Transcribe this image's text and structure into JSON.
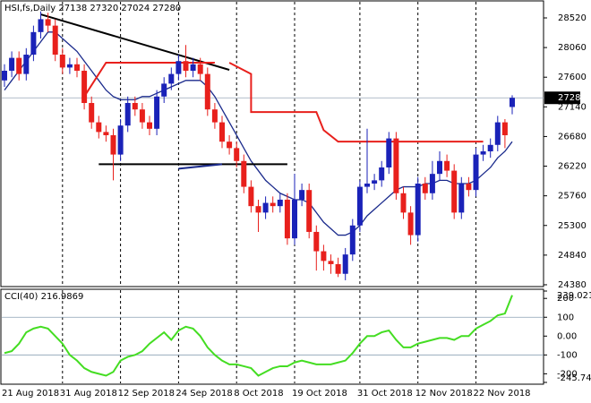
{
  "chart_data": {
    "type": "candlestick",
    "title": "HSI,fs,Daily  27138 27320 27024 27280",
    "categories": [
      "21 Aug 2018",
      null,
      null,
      null,
      null,
      null,
      null,
      null,
      "31 Aug 2018",
      null,
      null,
      null,
      null,
      null,
      null,
      null,
      "12 Sep 2018",
      null,
      null,
      null,
      null,
      null,
      null,
      null,
      "24 Sep 2018",
      null,
      null,
      null,
      null,
      null,
      null,
      null,
      "8 Oct 2018",
      null,
      null,
      null,
      null,
      null,
      null,
      null,
      "19 Oct 2018",
      null,
      null,
      null,
      null,
      null,
      null,
      null,
      null,
      "31 Oct 2018",
      null,
      null,
      null,
      null,
      null,
      null,
      null,
      "12 Nov 2018",
      null,
      null,
      null,
      null,
      null,
      null,
      null,
      "22 Nov 2018",
      null,
      null,
      null,
      null,
      null
    ],
    "open": [
      27550,
      27700,
      27900,
      27650,
      27950,
      28300,
      28500,
      28400,
      27950,
      27750,
      27800,
      27700,
      27200,
      26900,
      26750,
      26700,
      26400,
      26850,
      27200,
      27100,
      26900,
      26800,
      27300,
      27500,
      27650,
      27850,
      27700,
      27800,
      27650,
      27100,
      26900,
      26600,
      26500,
      26300,
      25900,
      25600,
      25500,
      25650,
      25600,
      25700,
      25100,
      25700,
      25850,
      25200,
      24900,
      24750,
      24700,
      24550,
      24850,
      25300,
      25900,
      25950,
      26000,
      26200,
      26650,
      25800,
      25500,
      25150,
      25950,
      25800,
      26100,
      26300,
      26150,
      25500,
      25950,
      25850,
      26400,
      26450,
      26550,
      26900,
      27138
    ],
    "high": [
      27800,
      28000,
      28000,
      28050,
      28400,
      28620,
      28600,
      28500,
      28050,
      27900,
      27900,
      27800,
      27300,
      27000,
      26850,
      26800,
      26950,
      27300,
      27300,
      27200,
      27000,
      27400,
      27600,
      27750,
      27950,
      28100,
      27900,
      27900,
      27750,
      27200,
      27000,
      26700,
      26600,
      26400,
      26000,
      25700,
      25750,
      25750,
      25800,
      25800,
      26100,
      25950,
      25950,
      25300,
      25000,
      24850,
      24800,
      24950,
      25400,
      26000,
      26800,
      26100,
      26300,
      26750,
      26750,
      25900,
      25600,
      26050,
      26050,
      26300,
      26450,
      26400,
      26250,
      26050,
      26050,
      26500,
      26550,
      26650,
      27000,
      26950,
      27320
    ],
    "low": [
      27450,
      27600,
      27550,
      27550,
      27850,
      28200,
      28300,
      27850,
      27650,
      27650,
      27600,
      27100,
      26800,
      26650,
      26600,
      26000,
      26300,
      26750,
      27000,
      26800,
      26700,
      26700,
      27200,
      27400,
      27550,
      27600,
      27600,
      27550,
      27000,
      26800,
      26500,
      26400,
      26200,
      25800,
      25500,
      25200,
      25400,
      25500,
      25500,
      25000,
      25000,
      25600,
      25100,
      24600,
      24600,
      24550,
      24500,
      24450,
      24750,
      25200,
      25800,
      25850,
      25900,
      26100,
      25700,
      25400,
      25000,
      25050,
      25700,
      25700,
      26000,
      26050,
      25400,
      25400,
      25750,
      25750,
      26300,
      26350,
      26450,
      26500,
      27024
    ],
    "close": [
      27700,
      27900,
      27650,
      27950,
      28300,
      28500,
      28400,
      27950,
      27750,
      27800,
      27700,
      27200,
      26900,
      26750,
      26700,
      26400,
      26850,
      27200,
      27100,
      26900,
      26800,
      27300,
      27500,
      27650,
      27850,
      27700,
      27800,
      27650,
      27100,
      26900,
      26600,
      26500,
      26300,
      25900,
      25600,
      25500,
      25650,
      25600,
      25700,
      25100,
      25700,
      25850,
      25200,
      24900,
      24750,
      24700,
      24550,
      24850,
      25300,
      25900,
      25950,
      26000,
      26200,
      26650,
      25800,
      25500,
      25150,
      25950,
      25800,
      26100,
      26300,
      26150,
      25500,
      25950,
      25850,
      26400,
      26450,
      26550,
      26900,
      26700,
      27280
    ],
    "up_color": "#1a22b8",
    "down_color": "#e8201c",
    "ma": {
      "color": "#1a2a8c",
      "values": [
        27400,
        27550,
        27700,
        27850,
        28000,
        28150,
        28300,
        28300,
        28200,
        28100,
        28000,
        27850,
        27700,
        27550,
        27400,
        27300,
        27250,
        27250,
        27250,
        27300,
        27300,
        27350,
        27400,
        27450,
        27500,
        27550,
        27550,
        27550,
        27450,
        27300,
        27100,
        26900,
        26700,
        26500,
        26300,
        26150,
        26000,
        25900,
        25800,
        25750,
        25700,
        25700,
        25650,
        25500,
        25350,
        25250,
        25150,
        25150,
        25200,
        25300,
        25450,
        25550,
        25650,
        25750,
        25850,
        25900,
        25900,
        25900,
        25950,
        25950,
        26000,
        26000,
        25950,
        25950,
        25950,
        26000,
        26100,
        26200,
        26350,
        26450,
        26600
      ]
    },
    "annotations": [
      {
        "color": "#000000",
        "x": [
          5,
          31
        ],
        "y": [
          28575,
          27714
        ]
      },
      {
        "color": "#000000",
        "x": [
          13,
          39
        ],
        "y": [
          26250,
          26250
        ]
      },
      {
        "color": "#1a2a8c",
        "x": [
          24,
          30
        ],
        "y": [
          26180,
          26250
        ]
      },
      {
        "color": "#e8201c",
        "x": [
          11,
          14,
          29
        ],
        "y": [
          27300,
          27825,
          27825
        ]
      },
      {
        "color": "#e8201c",
        "x": [
          31,
          34,
          34,
          43,
          44,
          46,
          66
        ],
        "y": [
          27825,
          27650,
          27060,
          27060,
          26780,
          26600,
          26600
        ]
      }
    ],
    "ylim": [
      24338,
      28756
    ],
    "yticks": [
      28520,
      28060,
      27600,
      27140,
      26680,
      26220,
      25760,
      25300,
      24840,
      24380
    ],
    "indicator": {
      "title": "CCI(40) 216.9869",
      "color": "#44dd22",
      "values": [
        -90,
        -80,
        -40,
        20,
        40,
        50,
        40,
        0,
        -40,
        -100,
        -130,
        -170,
        -190,
        -200,
        -210,
        -190,
        -130,
        -110,
        -100,
        -80,
        -40,
        -10,
        20,
        -20,
        30,
        50,
        40,
        0,
        -60,
        -100,
        -130,
        -150,
        -150,
        -160,
        -170,
        -210,
        -190,
        -170,
        -160,
        -160,
        -140,
        -130,
        -140,
        -150,
        -150,
        -150,
        -140,
        -130,
        -90,
        -40,
        0,
        0,
        20,
        30,
        -20,
        -60,
        -60,
        -40,
        -30,
        -20,
        -10,
        -10,
        -20,
        0,
        0,
        40,
        60,
        80,
        110,
        120,
        216.9869
      ],
      "ylim": [
        -245.74,
        239.0215
      ],
      "yticks": [
        239.0215,
        200,
        100,
        {
          "value": 0,
          "label": "0.00"
        },
        -100,
        -200,
        {
          "value": -245.74,
          "label": "-245.740"
        }
      ],
      "levels": [
        100,
        -100
      ]
    }
  }
}
